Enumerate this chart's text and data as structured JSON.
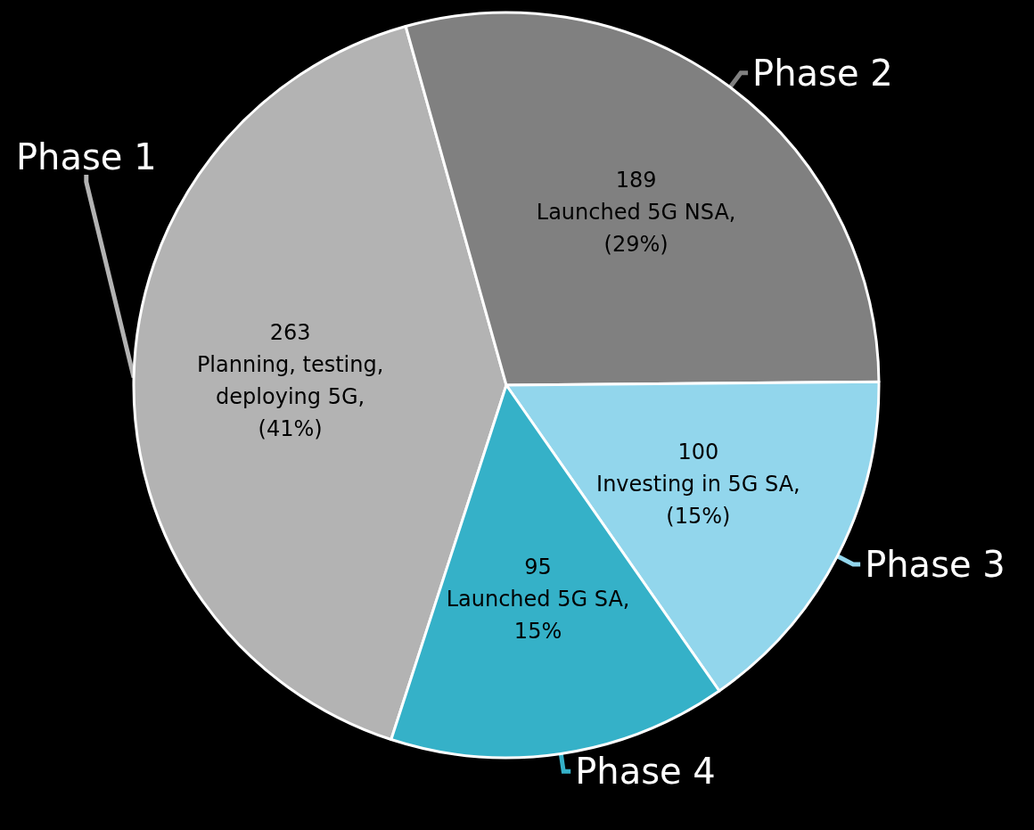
{
  "chart_data": {
    "type": "pie",
    "categories": [
      "Phase 1",
      "Phase 2",
      "Phase 3",
      "Phase 4"
    ],
    "values": [
      263,
      189,
      100,
      95
    ],
    "colors": [
      "#b3b3b3",
      "#808080",
      "#92d6ec",
      "#35b1c8"
    ],
    "value_labels": [
      "263\nPlanning, testing,\ndeploying 5G,\n(41%)",
      "189\nLaunched 5G NSA,\n(29%)",
      "100\nInvesting in 5G SA,\n(15%)",
      "95\nLaunched 5G SA,\n15%"
    ],
    "legend": false
  }
}
